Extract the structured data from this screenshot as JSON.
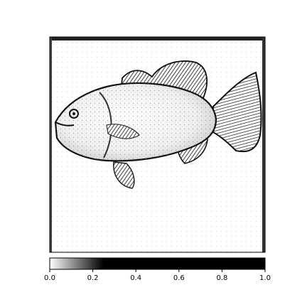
{
  "chart_data": {
    "type": "heatmap",
    "title": "",
    "xlabel": "",
    "ylabel": "",
    "image_description": "saliency map of a fish",
    "colormap": "gray_r",
    "colorbar": {
      "orientation": "horizontal",
      "range": [
        0.0,
        1.0
      ],
      "ticks": [
        0.0,
        0.2,
        0.4,
        0.6,
        0.8,
        1.0
      ],
      "tick_labels": [
        "0.0",
        "0.2",
        "0.4",
        "0.6",
        "0.8",
        "1.0"
      ],
      "saturation_value": 0.25,
      "fill_start_color": "#ffffff",
      "fill_end_color": "#000000"
    },
    "grid": false,
    "legend": "none"
  }
}
